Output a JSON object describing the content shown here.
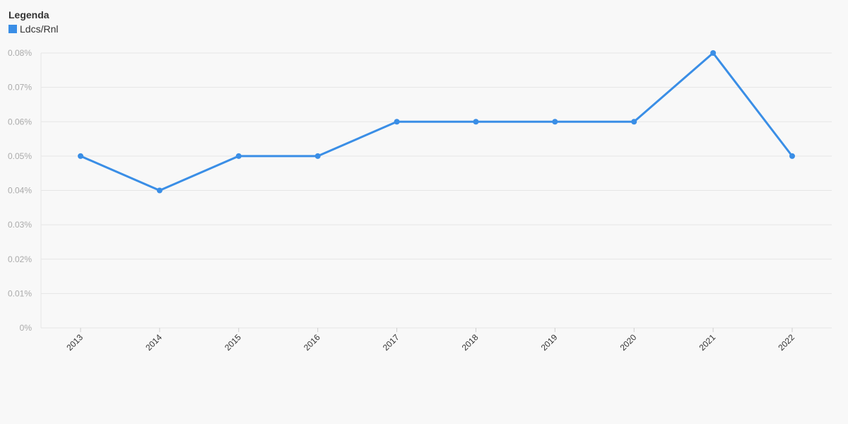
{
  "legend": {
    "title": "Legenda",
    "entries": [
      {
        "label": "Ldcs/Rnl",
        "color": "#3a8ee6"
      }
    ]
  },
  "chart_data": {
    "type": "line",
    "categories": [
      "2013",
      "2014",
      "2015",
      "2016",
      "2017",
      "2018",
      "2019",
      "2020",
      "2021",
      "2022"
    ],
    "series": [
      {
        "name": "Ldcs/Rnl",
        "color": "#3a8ee6",
        "values": [
          0.05,
          0.04,
          0.05,
          0.05,
          0.06,
          0.06,
          0.06,
          0.06,
          0.08,
          0.05
        ]
      }
    ],
    "y_ticks": [
      "0%",
      "0.01%",
      "0.02%",
      "0.03%",
      "0.04%",
      "0.05%",
      "0.06%",
      "0.07%",
      "0.08%"
    ],
    "ylim": [
      0,
      0.08
    ],
    "y_unit": "%",
    "grid": true,
    "legend_position": "top-left",
    "title": "",
    "xlabel": "",
    "ylabel": ""
  }
}
